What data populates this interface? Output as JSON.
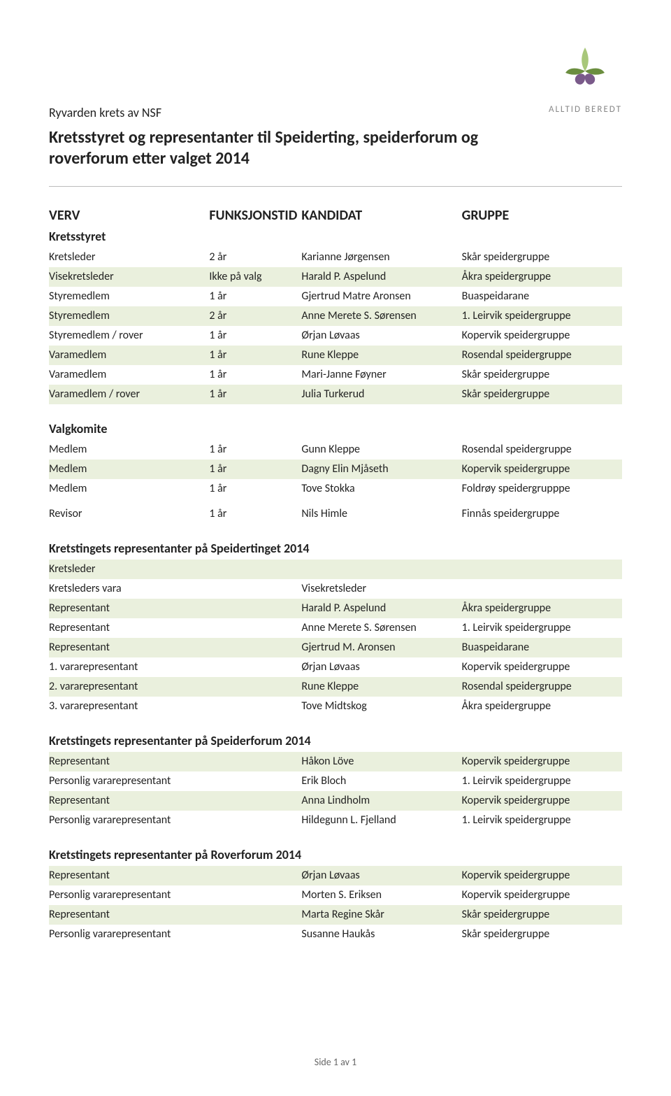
{
  "org_name": "Ryvarden krets av NSF",
  "motto": "ALLTID BEREDT",
  "title_line1": "Kretsstyret og representanter til Speiderting, speiderforum og",
  "title_line2": "roverforum etter valget 2014",
  "colors": {
    "alt_row": "#eaf0dd",
    "text": "#222222",
    "logo_green_mid": "#a8c77a",
    "logo_green_dark": "#6b8e3f",
    "logo_purple": "#7a5a8a",
    "hr": "#bbbbbb"
  },
  "columns": {
    "verv": "VERV",
    "funk": "FUNKSJONSTID",
    "kand": "KANDIDAT",
    "gruppe": "GRUPPE"
  },
  "kretsstyret": {
    "title": "Kretsstyret",
    "rows": [
      {
        "c1": "Kretsleder",
        "c2": "2 år",
        "c3": "Karianne Jørgensen",
        "c4": "Skår speidergruppe"
      },
      {
        "c1": "Visekretsleder",
        "c2": "Ikke på valg",
        "c3": "Harald P. Aspelund",
        "c4": "Åkra speidergruppe"
      },
      {
        "c1": "Styremedlem",
        "c2": "1 år",
        "c3": "Gjertrud Matre Aronsen",
        "c4": "Buaspeidarane"
      },
      {
        "c1": "Styremedlem",
        "c2": "2 år",
        "c3": "Anne Merete S. Sørensen",
        "c4": "1. Leirvik speidergruppe"
      },
      {
        "c1": "Styremedlem / rover",
        "c2": "1 år",
        "c3": "Ørjan Løvaas",
        "c4": "Kopervik speidergruppe"
      },
      {
        "c1": "Varamedlem",
        "c2": "1 år",
        "c3": "Rune Kleppe",
        "c4": "Rosendal speidergruppe"
      },
      {
        "c1": "Varamedlem",
        "c2": "1 år",
        "c3": "Mari-Janne Føyner",
        "c4": "Skår speidergruppe"
      },
      {
        "c1": "Varamedlem / rover",
        "c2": "1 år",
        "c3": "Julia Turkerud",
        "c4": "Skår speidergruppe"
      }
    ]
  },
  "valgkomite": {
    "title": "Valgkomite",
    "rows": [
      {
        "c1": "Medlem",
        "c2": "1 år",
        "c3": "Gunn Kleppe",
        "c4": "Rosendal speidergruppe"
      },
      {
        "c1": "Medlem",
        "c2": "1 år",
        "c3": "Dagny Elin Mjåseth",
        "c4": "Kopervik speidergruppe"
      },
      {
        "c1": "Medlem",
        "c2": "1 år",
        "c3": "Tove Stokka",
        "c4": "Foldrøy speidergrupppe"
      }
    ]
  },
  "revisor": {
    "rows": [
      {
        "c1": "Revisor",
        "c2": "1 år",
        "c3": "Nils Himle",
        "c4": "Finnås speidergruppe"
      }
    ]
  },
  "speidertinget": {
    "title": "Kretstingets representanter på Speidertinget 2014",
    "rows": [
      {
        "c1": "Kretsleder",
        "c2": "",
        "c3": "",
        "c4": ""
      },
      {
        "c1": "Kretsleders vara",
        "c2": "",
        "c3": "Visekretsleder",
        "c4": ""
      },
      {
        "c1": "Representant",
        "c2": "",
        "c3": "Harald P. Aspelund",
        "c4": "Åkra speidergruppe"
      },
      {
        "c1": "Representant",
        "c2": "",
        "c3": "Anne Merete S. Sørensen",
        "c4": "1. Leirvik speidergruppe"
      },
      {
        "c1": "Representant",
        "c2": "",
        "c3": "Gjertrud M. Aronsen",
        "c4": "Buaspeidarane"
      },
      {
        "c1": "1. vararepresentant",
        "c2": "",
        "c3": "Ørjan Løvaas",
        "c4": "Kopervik speidergruppe"
      },
      {
        "c1": "2. vararepresentant",
        "c2": "",
        "c3": "Rune Kleppe",
        "c4": "Rosendal speidergruppe"
      },
      {
        "c1": "3. vararepresentant",
        "c2": "",
        "c3": "Tove Midtskog",
        "c4": "Åkra speidergruppe"
      }
    ]
  },
  "speiderforum": {
    "title": "Kretstingets representanter på Speiderforum 2014",
    "rows": [
      {
        "c1": "Representant",
        "c2": "",
        "c3": "Håkon Löve",
        "c4": "Kopervik speidergruppe"
      },
      {
        "c1": "Personlig vararepresentant",
        "c2": "",
        "c3": "Erik Bloch",
        "c4": "1. Leirvik speidergruppe"
      },
      {
        "c1": "Representant",
        "c2": "",
        "c3": "Anna Lindholm",
        "c4": "Kopervik speidergruppe"
      },
      {
        "c1": "Personlig vararepresentant",
        "c2": "",
        "c3": "Hildegunn L. Fjelland",
        "c4": "1. Leirvik speidergruppe"
      }
    ]
  },
  "roverforum": {
    "title": "Kretstingets representanter på Roverforum 2014",
    "rows": [
      {
        "c1": "Representant",
        "c2": "",
        "c3": "Ørjan Løvaas",
        "c4": "Kopervik speidergruppe"
      },
      {
        "c1": "Personlig vararepresentant",
        "c2": "",
        "c3": "Morten S. Eriksen",
        "c4": "Kopervik speidergruppe"
      },
      {
        "c1": "Representant",
        "c2": "",
        "c3": "Marta Regine Skår",
        "c4": "Skår speidergruppe"
      },
      {
        "c1": "Personlig vararepresentant",
        "c2": "",
        "c3": "Susanne Haukås",
        "c4": "Skår speidergruppe"
      }
    ]
  },
  "footer": "Side 1 av 1"
}
